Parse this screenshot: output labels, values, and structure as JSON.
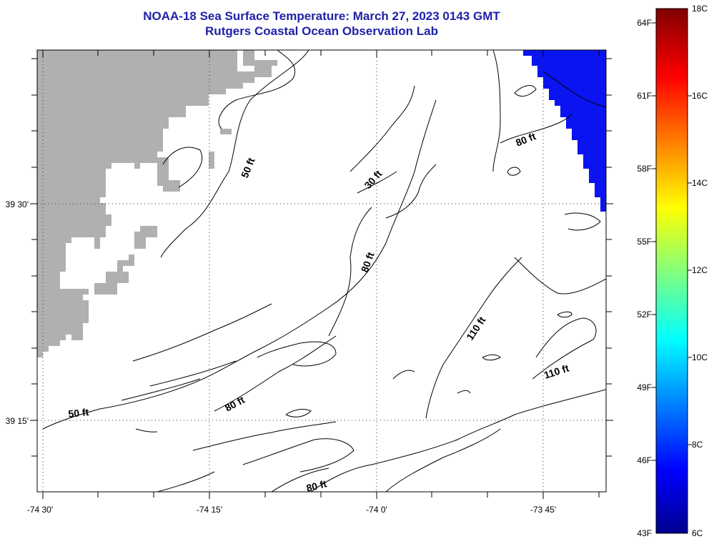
{
  "title": {
    "line1": "NOAA-18 Sea Surface Temperature:  March 27, 2023 0143 GMT",
    "line2": "Rutgers Coastal Ocean Observation Lab"
  },
  "axes": {
    "x_labels": [
      "-74 30'",
      "-74 15'",
      "-74 0'",
      "-73 45'"
    ],
    "y_labels": [
      "39 30'",
      "39 15'"
    ]
  },
  "contour_labels": [
    "50 ft",
    "30 ft",
    "80 ft",
    "80 ft",
    "110 ft",
    "110 ft",
    "50 ft",
    "80 ft",
    "80 ft"
  ],
  "colorbar": {
    "fahrenheit": [
      "64F",
      "61F",
      "58F",
      "55F",
      "52F",
      "49F",
      "46F",
      "43F"
    ],
    "celsius": [
      "18C",
      "16C",
      "14C",
      "12C",
      "10C",
      "8C",
      "6C"
    ]
  },
  "colors": {
    "land": "#b0b0b0",
    "sst_cold": "#0a14f0",
    "title": "#1e22a8"
  }
}
